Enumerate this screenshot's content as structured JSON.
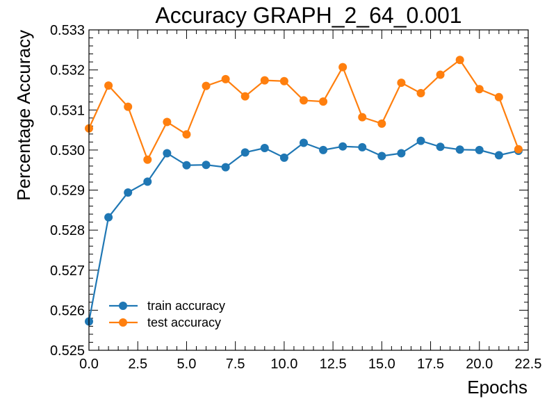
{
  "chart_data": {
    "type": "line",
    "title": "Accuracy GRAPH_2_64_0.001",
    "xlabel": "Epochs",
    "ylabel": "Percentage Accuracy",
    "xlim": [
      0,
      22.5
    ],
    "ylim": [
      0.525,
      0.533
    ],
    "xticks": [
      "0.0",
      "2.5",
      "5.0",
      "7.5",
      "10.0",
      "12.5",
      "15.0",
      "17.5",
      "20.0",
      "22.5"
    ],
    "yticks": [
      "0.525",
      "0.526",
      "0.527",
      "0.528",
      "0.529",
      "0.530",
      "0.531",
      "0.532",
      "0.533"
    ],
    "x": [
      0,
      1,
      2,
      3,
      4,
      5,
      6,
      7,
      8,
      9,
      10,
      11,
      12,
      13,
      14,
      15,
      16,
      17,
      18,
      19,
      20,
      21,
      22
    ],
    "series": [
      {
        "name": "train accuracy",
        "color": "#1f77b4",
        "values": [
          0.52572,
          0.52832,
          0.52894,
          0.52921,
          0.52992,
          0.52962,
          0.52963,
          0.52957,
          0.52994,
          0.53005,
          0.52981,
          0.53018,
          0.53,
          0.53009,
          0.53007,
          0.52985,
          0.52992,
          0.53023,
          0.53008,
          0.53001,
          0.53,
          0.52987,
          0.52998
        ]
      },
      {
        "name": "test accuracy",
        "color": "#ff7f0e",
        "values": [
          0.53054,
          0.53161,
          0.53108,
          0.52976,
          0.5307,
          0.53039,
          0.5316,
          0.53177,
          0.53134,
          0.53174,
          0.53172,
          0.53124,
          0.53121,
          0.53207,
          0.53082,
          0.53066,
          0.53168,
          0.53142,
          0.53188,
          0.53225,
          0.53152,
          0.53132,
          0.53002
        ]
      }
    ],
    "legend_position": "lower-left",
    "grid": false
  }
}
